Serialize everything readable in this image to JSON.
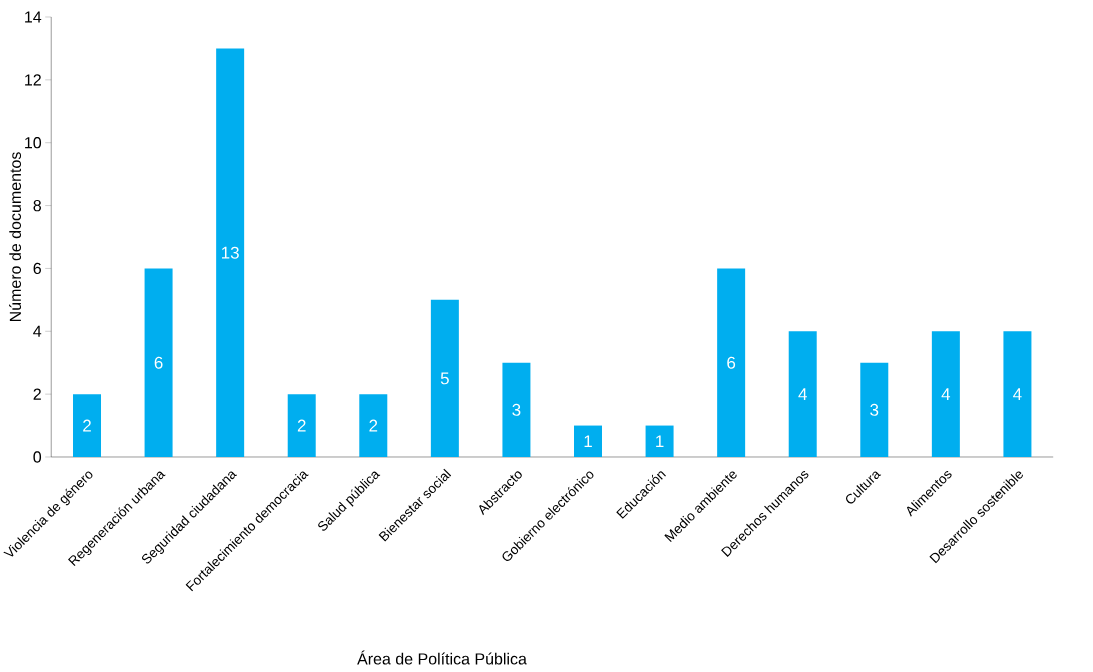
{
  "chart_data": {
    "type": "bar",
    "xlabel": "Área de Política Pública",
    "ylabel": "Número de documentos",
    "categories": [
      "Violencia de género",
      "Regeneración urbana",
      "Seguridad ciudadana",
      "Fortalecimiento democracia",
      "Salud pública",
      "Bienestar social",
      "Abstracto",
      "Gobierno electrónico",
      "Educación",
      "Medio ambiente",
      "Derechos humanos",
      "Cultura",
      "Alimentos",
      "Desarrollo sostenible"
    ],
    "values": [
      2,
      6,
      13,
      2,
      2,
      5,
      3,
      1,
      1,
      6,
      4,
      3,
      4,
      4
    ],
    "color": "#00aeef",
    "ylim": [
      0,
      14
    ],
    "yticks": [
      0,
      2,
      4,
      6,
      8,
      10,
      12,
      14
    ],
    "data_labels": true,
    "grid": false
  }
}
